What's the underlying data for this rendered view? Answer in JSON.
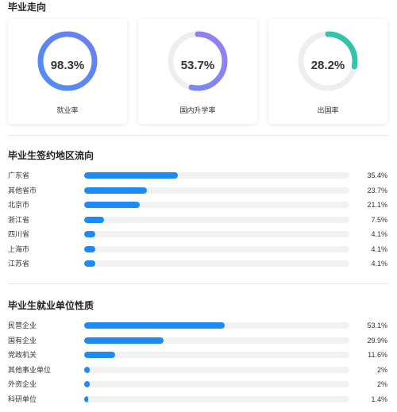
{
  "destination": {
    "title": "毕业走向",
    "cards": [
      {
        "value": "98.3%",
        "fraction": 0.983,
        "label": "就业率",
        "colors": [
          "#4e8cf7",
          "#6b7ff5"
        ]
      },
      {
        "value": "53.7%",
        "fraction": 0.537,
        "label": "国内升学率",
        "colors": [
          "#6f8cf9",
          "#9b7bf3"
        ]
      },
      {
        "value": "28.2%",
        "fraction": 0.282,
        "label": "出国率",
        "colors": [
          "#3fcbb2",
          "#2fc2a8"
        ]
      }
    ],
    "track_color": "#eeeeee"
  },
  "regions": {
    "title": "毕业生签约地区流向",
    "items": [
      {
        "name": "广东省",
        "value": "35.4%",
        "fraction": 0.354
      },
      {
        "name": "其他省市",
        "value": "23.7%",
        "fraction": 0.237
      },
      {
        "name": "北京市",
        "value": "21.1%",
        "fraction": 0.211
      },
      {
        "name": "浙江省",
        "value": "7.5%",
        "fraction": 0.075
      },
      {
        "name": "四川省",
        "value": "4.1%",
        "fraction": 0.041
      },
      {
        "name": "上海市",
        "value": "4.1%",
        "fraction": 0.041
      },
      {
        "name": "江苏省",
        "value": "4.1%",
        "fraction": 0.041
      }
    ]
  },
  "units": {
    "title": "毕业生就业单位性质",
    "items": [
      {
        "name": "民营企业",
        "value": "53.1%",
        "fraction": 0.531
      },
      {
        "name": "国有企业",
        "value": "29.9%",
        "fraction": 0.299
      },
      {
        "name": "党政机关",
        "value": "11.6%",
        "fraction": 0.116
      },
      {
        "name": "其他事业单位",
        "value": "2%",
        "fraction": 0.02
      },
      {
        "name": "外资企业",
        "value": "2%",
        "fraction": 0.02
      },
      {
        "name": "科研单位",
        "value": "1.4%",
        "fraction": 0.014
      }
    ]
  },
  "bar_color": "#1e8bf3",
  "track_color": "#f1f1f3"
}
